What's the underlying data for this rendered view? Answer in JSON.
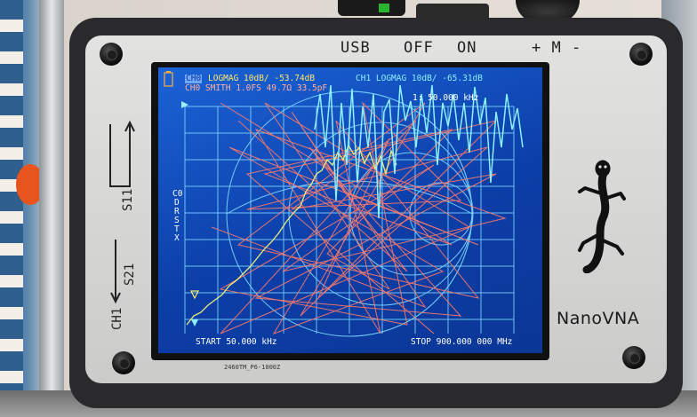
{
  "device": {
    "top_labels": [
      "USB",
      "OFF",
      "ON",
      "+ M -"
    ],
    "side_labels": {
      "s11": "S11",
      "s21": "S21",
      "ch1": "CH1"
    },
    "brand": "NanoVNA",
    "ribbon": "2460TM_P6-1000Z"
  },
  "screen": {
    "trace_line1": "LOGMAG 10dB/ -53.74dB",
    "ch0_line1_prefix": "CH0",
    "ch1_line1": "CH1 LOGMAG 10dB/ -65.31dB",
    "ch0_line2": "CH0 SMITH 1.0FS 49.7Ω 33.5pF",
    "marker": "1: 50.000 kHz",
    "side_marker_labels": [
      "C0",
      "D",
      "R",
      "S",
      "T",
      "X"
    ],
    "start": "START 50.000 kHz",
    "stop": "STOP 900.000 000 MHz"
  },
  "colors": {
    "lcd_bg": "#0c3ea8",
    "ch0_trace": "#ffe86a",
    "ch1_trace": "#8cf0ff",
    "smith_trace": "#ff7a6a",
    "grid": "#7fd9ff"
  },
  "icons": {
    "battery": "battery-icon",
    "gecko": "gecko-logo-icon",
    "reference": "reference-marker-icon"
  }
}
